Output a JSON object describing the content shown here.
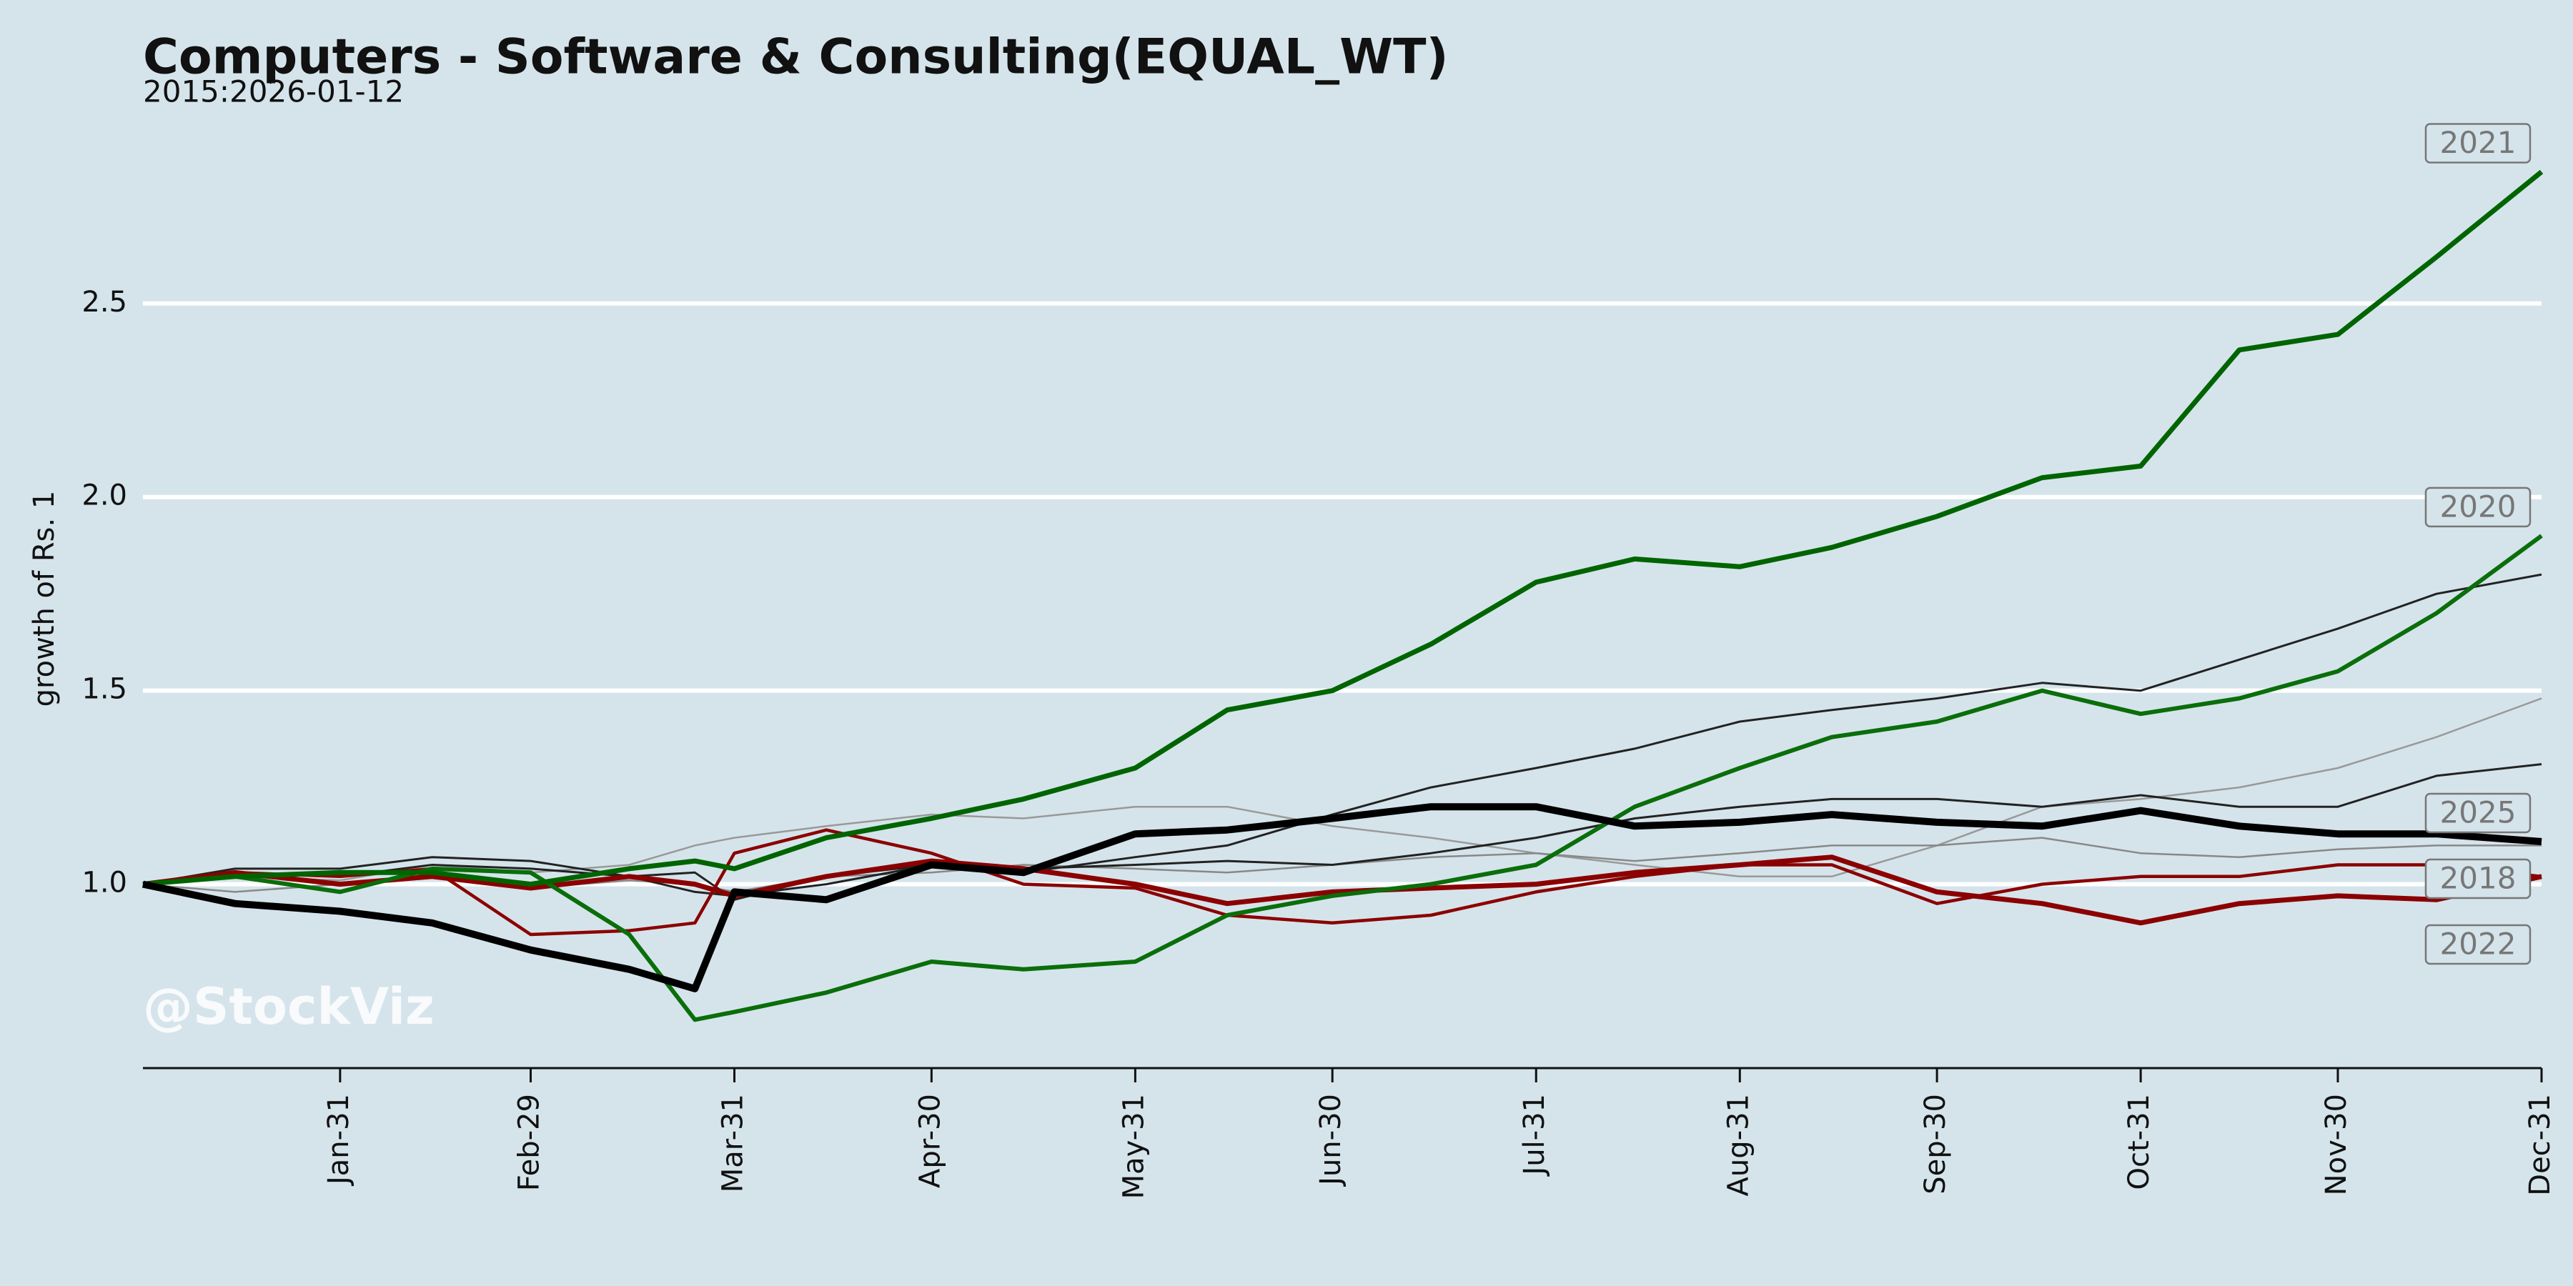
{
  "chart_data": {
    "type": "line",
    "title": "Computers - Software & Consulting(EQUAL_WT)",
    "subtitle": "2015:2026-01-12",
    "y_label": "growth of Rs. 1",
    "watermark": "@StockViz",
    "x": [
      1,
      15,
      31,
      45,
      60,
      75,
      85,
      91,
      105,
      121,
      135,
      152,
      166,
      182,
      197,
      213,
      228,
      244,
      258,
      274,
      290,
      305,
      320,
      335,
      350,
      366
    ],
    "xlim": [
      1,
      366
    ],
    "xticks": [
      {
        "value": 31,
        "label": "Jan-31"
      },
      {
        "value": 60,
        "label": "Feb-29"
      },
      {
        "value": 91,
        "label": "Mar-31"
      },
      {
        "value": 121,
        "label": "Apr-30"
      },
      {
        "value": 152,
        "label": "May-31"
      },
      {
        "value": 182,
        "label": "Jun-30"
      },
      {
        "value": 213,
        "label": "Jul-31"
      },
      {
        "value": 244,
        "label": "Aug-31"
      },
      {
        "value": 274,
        "label": "Sep-30"
      },
      {
        "value": 305,
        "label": "Oct-31"
      },
      {
        "value": 335,
        "label": "Nov-30"
      },
      {
        "value": 366,
        "label": "Dec-31"
      }
    ],
    "ylim": [
      0.525,
      2.9
    ],
    "yticks": [
      {
        "value": 1,
        "label": "1.0"
      },
      1.5,
      {
        "value": 2,
        "label": "2.0"
      },
      2.5
    ],
    "grid": true,
    "series": [
      {
        "color": "#999999",
        "values": [
          1.0,
          1.02,
          1.01,
          1.05,
          1.03,
          1.05,
          1.1,
          1.12,
          1.15,
          1.18,
          1.17,
          1.2,
          1.2,
          1.15,
          1.12,
          1.08,
          1.05,
          1.02,
          1.02,
          1.1,
          1.2,
          1.22,
          1.25,
          1.3,
          1.38,
          1.48
        ]
      },
      {
        "color": "#888888",
        "values": [
          1.0,
          0.98,
          1.0,
          1.02,
          0.99,
          1.01,
          1.0,
          0.98,
          1.02,
          1.03,
          1.05,
          1.04,
          1.03,
          1.05,
          1.07,
          1.08,
          1.06,
          1.08,
          1.1,
          1.1,
          1.12,
          1.08,
          1.07,
          1.09,
          1.1,
          1.1
        ]
      },
      {
        "color": "#222222",
        "values": [
          1.0,
          1.03,
          1.02,
          1.05,
          1.04,
          1.02,
          0.98,
          0.97,
          1.0,
          1.05,
          1.03,
          1.07,
          1.1,
          1.18,
          1.25,
          1.3,
          1.35,
          1.42,
          1.45,
          1.48,
          1.52,
          1.5,
          1.58,
          1.66,
          1.75,
          1.8
        ]
      },
      {
        "color": "#222222",
        "values": [
          1.0,
          1.04,
          1.04,
          1.07,
          1.06,
          1.02,
          1.03,
          0.96,
          1.02,
          1.05,
          1.04,
          1.05,
          1.06,
          1.05,
          1.08,
          1.12,
          1.17,
          1.2,
          1.22,
          1.22,
          1.2,
          1.23,
          1.2,
          1.2,
          1.28,
          1.31
        ]
      },
      {
        "name": "2018",
        "color": "#8b0000",
        "values": [
          1.0,
          1.03,
          1.02,
          1.04,
          0.87,
          0.88,
          0.9,
          1.08,
          1.14,
          1.08,
          1.0,
          0.99,
          0.92,
          0.9,
          0.92,
          0.98,
          1.02,
          1.05,
          1.05,
          0.95,
          1.0,
          1.02,
          1.02,
          1.05,
          1.05,
          1.02
        ]
      },
      {
        "name": "2022",
        "color": "#8b0000",
        "values": [
          1.0,
          1.03,
          1.0,
          1.02,
          0.99,
          1.02,
          1.0,
          0.97,
          1.02,
          1.06,
          1.04,
          1.0,
          0.95,
          0.98,
          0.99,
          1.0,
          1.03,
          1.05,
          1.07,
          0.98,
          0.95,
          0.9,
          0.95,
          0.97,
          0.96,
          1.02
        ]
      },
      {
        "name": "2020",
        "color": "#0a6e0a",
        "values": [
          1.0,
          1.02,
          0.98,
          1.04,
          1.03,
          0.87,
          0.65,
          0.67,
          0.72,
          0.8,
          0.78,
          0.8,
          0.92,
          0.97,
          1.0,
          1.05,
          1.2,
          1.3,
          1.38,
          1.42,
          1.5,
          1.44,
          1.48,
          1.55,
          1.7,
          1.9
        ]
      },
      {
        "name": "2021",
        "color": "#006400",
        "values": [
          1.0,
          1.02,
          1.03,
          1.03,
          1.0,
          1.04,
          1.06,
          1.04,
          1.12,
          1.17,
          1.22,
          1.3,
          1.45,
          1.5,
          1.62,
          1.78,
          1.84,
          1.82,
          1.87,
          1.95,
          2.05,
          2.08,
          2.38,
          2.42,
          2.62,
          2.84
        ]
      },
      {
        "name": "2025",
        "color": "#000000",
        "values": [
          1.0,
          0.95,
          0.93,
          0.9,
          0.83,
          0.78,
          0.73,
          0.98,
          0.96,
          1.05,
          1.03,
          1.13,
          1.14,
          1.17,
          1.2,
          1.2,
          1.15,
          1.16,
          1.18,
          1.16,
          1.15,
          1.19,
          1.15,
          1.13,
          1.13,
          1.11
        ]
      }
    ]
  }
}
